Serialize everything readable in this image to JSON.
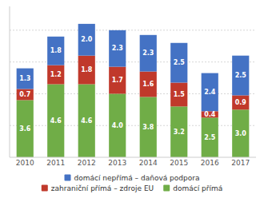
{
  "chart_data": {
    "type": "bar",
    "stacked": true,
    "categories": [
      "2010",
      "2011",
      "2012",
      "2013",
      "2014",
      "2015",
      "2016",
      "2017"
    ],
    "series": [
      {
        "name": "domácí přímá",
        "color": "#70ad47",
        "values": [
          3.6,
          4.6,
          4.6,
          4.0,
          3.8,
          3.2,
          2.5,
          3.0
        ],
        "value_labels": [
          "3.6",
          "4.6",
          "4.6",
          "4.0",
          "3.8",
          "3.2",
          "2.5",
          "3.0"
        ]
      },
      {
        "name": "zahraniční přímá – zdroje EU",
        "color": "#c0392b",
        "values": [
          0.7,
          1.2,
          1.8,
          1.7,
          1.6,
          1.5,
          0.4,
          0.9
        ],
        "value_labels": [
          "0.7",
          "1.2",
          "1.8",
          "1.7",
          "1.6",
          "1.5",
          "0.4",
          "0.9"
        ]
      },
      {
        "name": "domácí nepřímá – daňová podpora",
        "color": "#4472c4",
        "values": [
          1.3,
          1.8,
          2.0,
          2.3,
          2.3,
          2.5,
          2.4,
          2.5
        ],
        "value_labels": [
          "1.3",
          "1.8",
          "2.0",
          "2.3",
          "2.3",
          "2.5",
          "2.4",
          "2.5"
        ]
      }
    ],
    "ylim": [
      0,
      9.5
    ],
    "yticks": [
      2,
      4,
      6,
      8
    ],
    "grid": true,
    "tick_labels": "x",
    "data_labels": true,
    "legend": "bottom"
  }
}
